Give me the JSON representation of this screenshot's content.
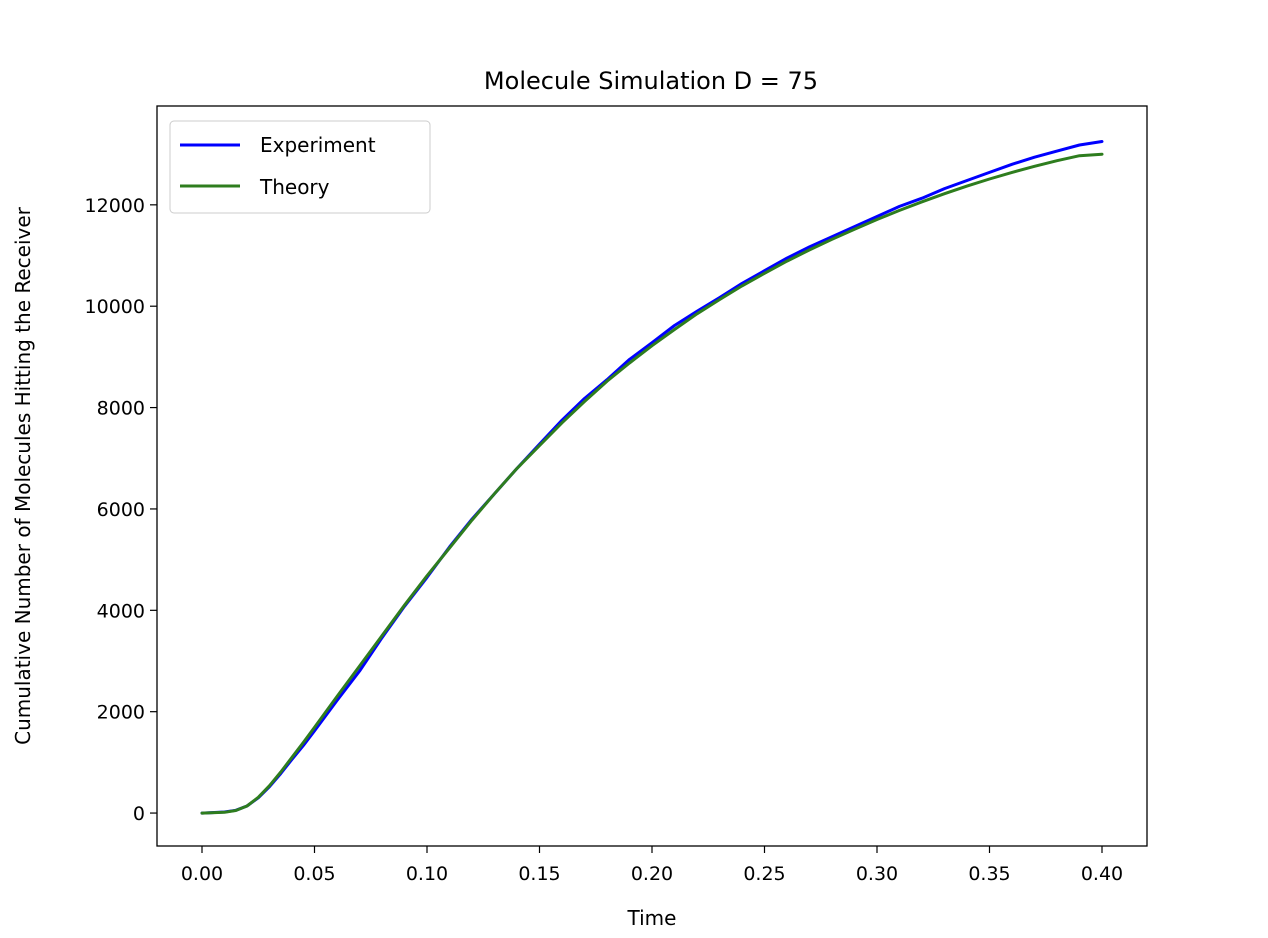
{
  "chart_data": {
    "type": "line",
    "title": "Molecule Simulation D = 75",
    "xlabel": "Time",
    "ylabel": "Cumulative Number of Molecules Hitting the Receiver",
    "xlim": [
      -0.02,
      0.42
    ],
    "ylim": [
      -650,
      13950
    ],
    "xticks": [
      0.0,
      0.05,
      0.1,
      0.15,
      0.2,
      0.25,
      0.3,
      0.35,
      0.4
    ],
    "xtick_labels": [
      "0.00",
      "0.05",
      "0.10",
      "0.15",
      "0.20",
      "0.25",
      "0.30",
      "0.35",
      "0.40"
    ],
    "yticks": [
      0,
      2000,
      4000,
      6000,
      8000,
      10000,
      12000
    ],
    "ytick_labels": [
      "0",
      "2000",
      "4000",
      "6000",
      "8000",
      "10000",
      "12000"
    ],
    "grid": false,
    "legend_position": "upper-left",
    "x": [
      0.0,
      0.01,
      0.015,
      0.02,
      0.025,
      0.03,
      0.035,
      0.04,
      0.045,
      0.05,
      0.06,
      0.07,
      0.08,
      0.09,
      0.1,
      0.11,
      0.12,
      0.13,
      0.14,
      0.15,
      0.16,
      0.17,
      0.18,
      0.19,
      0.2,
      0.21,
      0.22,
      0.23,
      0.24,
      0.25,
      0.26,
      0.27,
      0.28,
      0.29,
      0.3,
      0.31,
      0.32,
      0.33,
      0.34,
      0.35,
      0.36,
      0.37,
      0.38,
      0.39,
      0.4
    ],
    "series": [
      {
        "name": "Experiment",
        "color": "#0000ff",
        "values": [
          0,
          20,
          55,
          140,
          300,
          520,
          780,
          1060,
          1330,
          1620,
          2220,
          2800,
          3460,
          4080,
          4650,
          5250,
          5800,
          6300,
          6800,
          7280,
          7750,
          8180,
          8550,
          8950,
          9280,
          9620,
          9900,
          10170,
          10450,
          10700,
          10950,
          11170,
          11370,
          11570,
          11770,
          11970,
          12130,
          12320,
          12480,
          12640,
          12800,
          12940,
          13060,
          13180,
          13250
        ]
      },
      {
        "name": "Theory",
        "color": "#2e7d1e",
        "values": [
          0,
          15,
          50,
          140,
          310,
          540,
          810,
          1100,
          1390,
          1690,
          2300,
          2900,
          3500,
          4100,
          4680,
          5230,
          5780,
          6300,
          6800,
          7250,
          7700,
          8120,
          8520,
          8880,
          9220,
          9540,
          9850,
          10130,
          10400,
          10650,
          10890,
          11110,
          11320,
          11520,
          11710,
          11890,
          12060,
          12220,
          12370,
          12510,
          12640,
          12760,
          12870,
          12970,
          13000
        ]
      }
    ]
  }
}
